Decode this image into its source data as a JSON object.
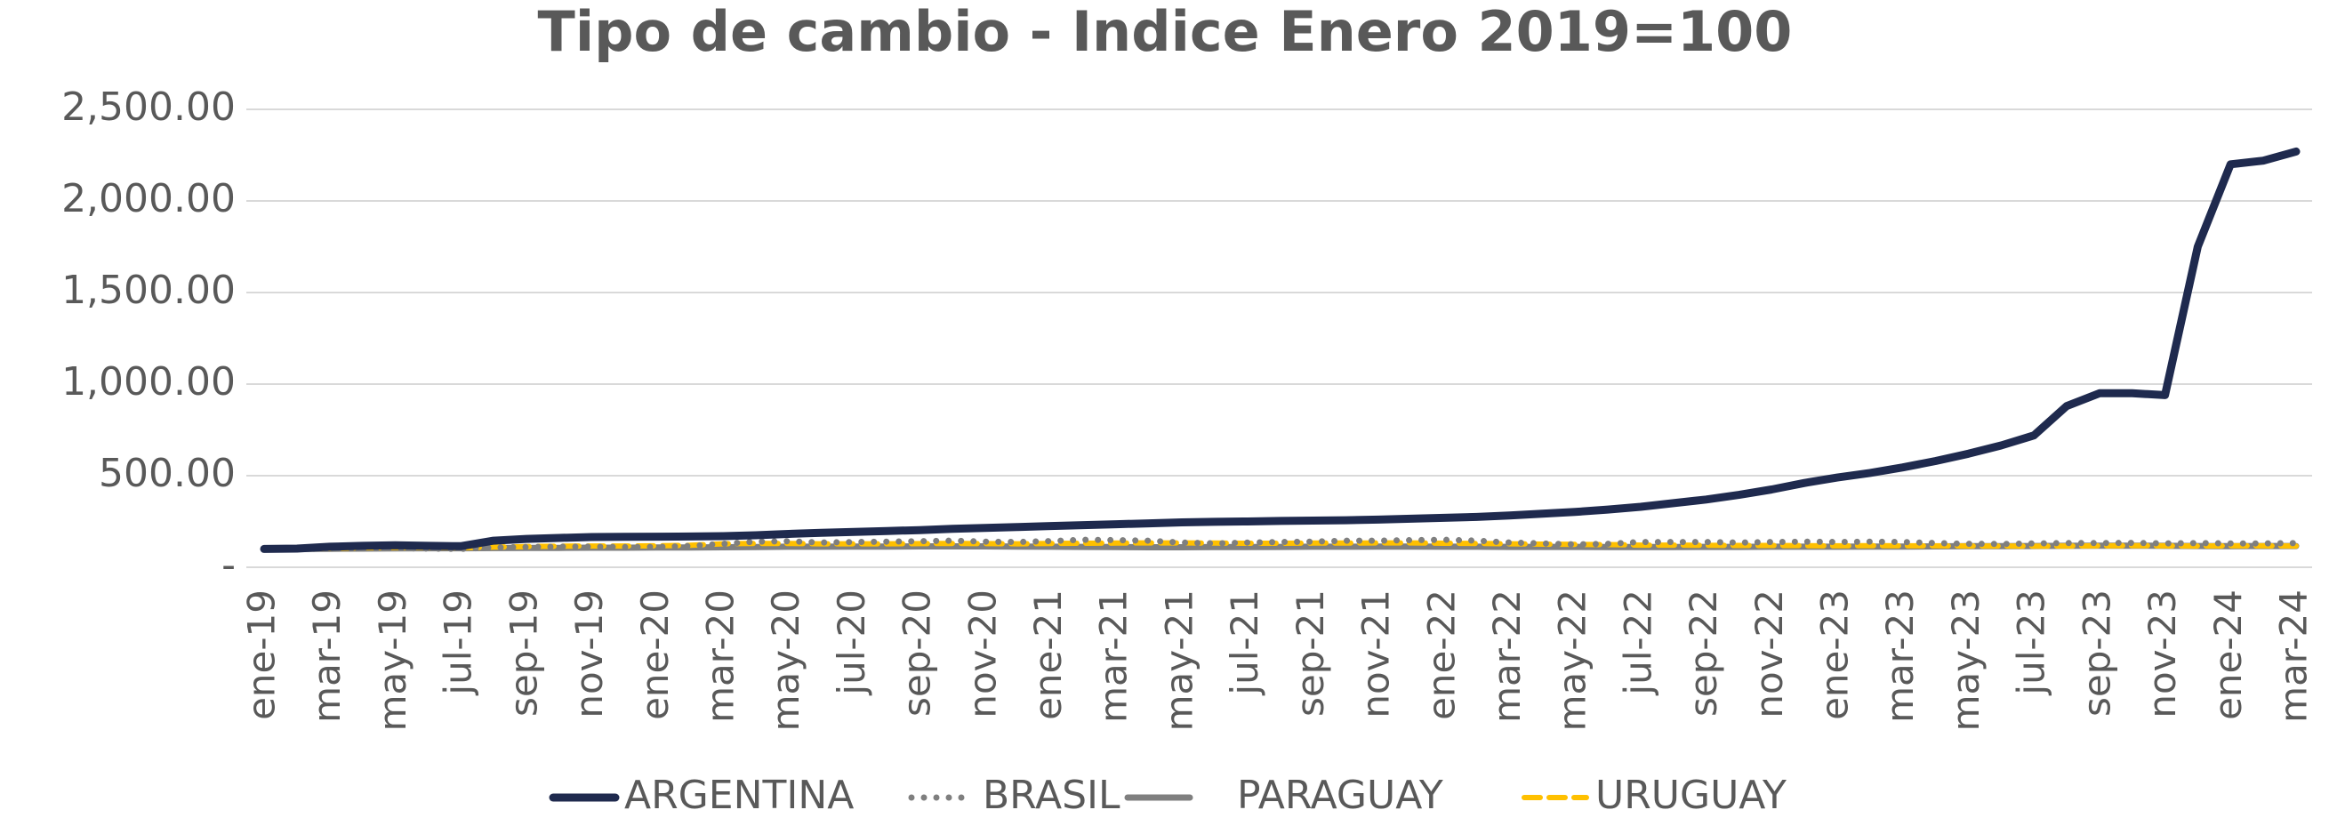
{
  "chart_data": {
    "type": "line",
    "title": "Tipo de cambio -  Indice Enero 2019=100",
    "categories": [
      "ene-19",
      null,
      "mar-19",
      null,
      "may-19",
      null,
      "jul-19",
      null,
      "sep-19",
      null,
      "nov-19",
      null,
      "ene-20",
      null,
      "mar-20",
      null,
      "may-20",
      null,
      "jul-20",
      null,
      "sep-20",
      null,
      "nov-20",
      null,
      "ene-21",
      null,
      "mar-21",
      null,
      "may-21",
      null,
      "jul-21",
      null,
      "sep-21",
      null,
      "nov-21",
      null,
      "ene-22",
      null,
      "mar-22",
      null,
      "may-22",
      null,
      "jul-22",
      null,
      "sep-22",
      null,
      "nov-22",
      null,
      "ene-23",
      null,
      "mar-23",
      null,
      "may-23",
      null,
      "jul-23",
      null,
      "sep-23",
      null,
      "nov-23",
      null,
      "ene-24",
      null,
      "mar-24"
    ],
    "series": [
      {
        "name": "ARGENTINA",
        "color": "#1f2a4e",
        "style": "solid",
        "values": [
          100,
          102,
          112,
          117,
          120,
          117,
          115,
          145,
          155,
          160,
          165,
          166,
          167,
          168,
          170,
          175,
          182,
          188,
          193,
          198,
          203,
          210,
          215,
          220,
          225,
          230,
          235,
          240,
          245,
          248,
          250,
          253,
          255,
          257,
          260,
          265,
          270,
          275,
          283,
          292,
          302,
          315,
          330,
          350,
          370,
          395,
          425,
          460,
          490,
          515,
          545,
          580,
          620,
          665,
          720,
          880,
          950,
          950,
          940,
          1750,
          2200,
          2220,
          2270
        ]
      },
      {
        "name": "BRASIL",
        "color": "#7f7f7f",
        "style": "dotted",
        "values": [
          100,
          100,
          102,
          103,
          105,
          102,
          100,
          108,
          110,
          112,
          112,
          110,
          111,
          116,
          128,
          140,
          142,
          135,
          138,
          140,
          142,
          145,
          140,
          138,
          143,
          150,
          148,
          145,
          135,
          130,
          135,
          138,
          140,
          145,
          145,
          148,
          150,
          145,
          135,
          130,
          125,
          128,
          138,
          138,
          138,
          135,
          138,
          140,
          138,
          140,
          138,
          132,
          128,
          127,
          130,
          132,
          132,
          133,
          130,
          132,
          130,
          130,
          132
        ]
      },
      {
        "name": "PARAGUAY",
        "color": "#7f7f7f",
        "style": "solid",
        "values": [
          100,
          100,
          101,
          102,
          103,
          104,
          104,
          105,
          106,
          106,
          107,
          107,
          108,
          108,
          109,
          110,
          112,
          112,
          113,
          113,
          114,
          114,
          114,
          113,
          112,
          111,
          110,
          109,
          109,
          110,
          110,
          111,
          112,
          112,
          113,
          113,
          112,
          112,
          111,
          111,
          111,
          110,
          110,
          110,
          111,
          111,
          112,
          112,
          112,
          113,
          113,
          114,
          115,
          115,
          116,
          117,
          118,
          118,
          117,
          116,
          115,
          116,
          116
        ]
      },
      {
        "name": "URUGUAY",
        "color": "#ffc000",
        "style": "dashed",
        "values": [
          100,
          101,
          103,
          106,
          108,
          108,
          106,
          110,
          113,
          115,
          116,
          116,
          117,
          120,
          128,
          130,
          130,
          128,
          128,
          128,
          129,
          130,
          129,
          128,
          130,
          131,
          132,
          133,
          133,
          132,
          131,
          131,
          132,
          132,
          133,
          133,
          131,
          130,
          128,
          126,
          125,
          124,
          121,
          121,
          120,
          119,
          119,
          118,
          117,
          118,
          117,
          117,
          116,
          116,
          115,
          116,
          117,
          118,
          117,
          116,
          117,
          117,
          116
        ]
      }
    ],
    "ylim": [
      0,
      2500
    ],
    "yticks": [
      {
        "value": 0,
        "label": "-"
      },
      {
        "value": 500,
        "label": "500.00"
      },
      {
        "value": 1000,
        "label": "1,000.00"
      },
      {
        "value": 1500,
        "label": "1,500.00"
      },
      {
        "value": 2000,
        "label": "2,000.00"
      },
      {
        "value": 2500,
        "label": "2,500.00"
      }
    ],
    "grid": true,
    "legend": "bottom"
  }
}
